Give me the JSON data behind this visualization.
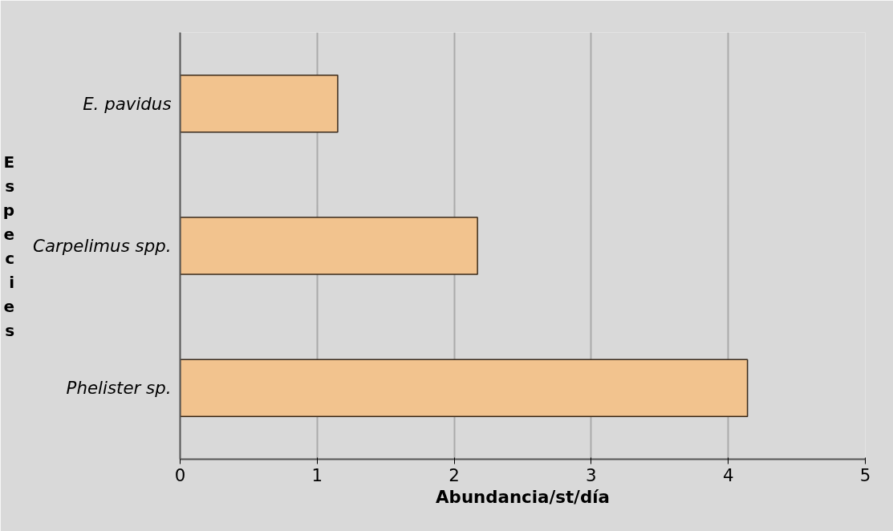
{
  "chart_data": {
    "type": "bar",
    "orientation": "horizontal",
    "xlabel": "Abundancia/st/día",
    "ylabel": "Especies",
    "categories": [
      "E. pavidus",
      "Carpelimus spp.",
      "Phelister sp."
    ],
    "values": [
      1.15,
      2.17,
      4.14
    ],
    "color": "#f2c38e",
    "xlim": [
      0,
      5
    ],
    "xticks": [
      0,
      1,
      2,
      3,
      4,
      5
    ],
    "grid": "x"
  }
}
